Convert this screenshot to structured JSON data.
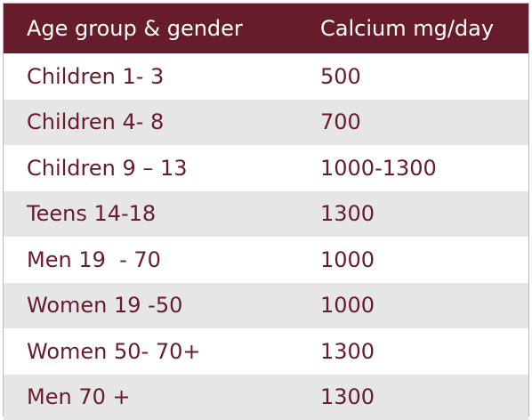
{
  "table": {
    "headers": [
      "Age group & gender",
      "Calcium mg/day"
    ],
    "rows": [
      [
        "Children 1- 3",
        "500"
      ],
      [
        "Children 4- 8",
        "700"
      ],
      [
        "Children 9 – 13",
        "1000-1300"
      ],
      [
        "Teens 14-18",
        "1300"
      ],
      [
        "Men 19  - 70",
        "1000"
      ],
      [
        "Women 19 -50",
        "1000"
      ],
      [
        "Women 50- 70+",
        "1300"
      ],
      [
        "Men 70 +",
        "1300"
      ]
    ]
  },
  "colors": {
    "header_bg": "#671c2c",
    "header_text": "#ffffff",
    "body_text": "#671c2c",
    "stripe": "#e6e6e6"
  }
}
